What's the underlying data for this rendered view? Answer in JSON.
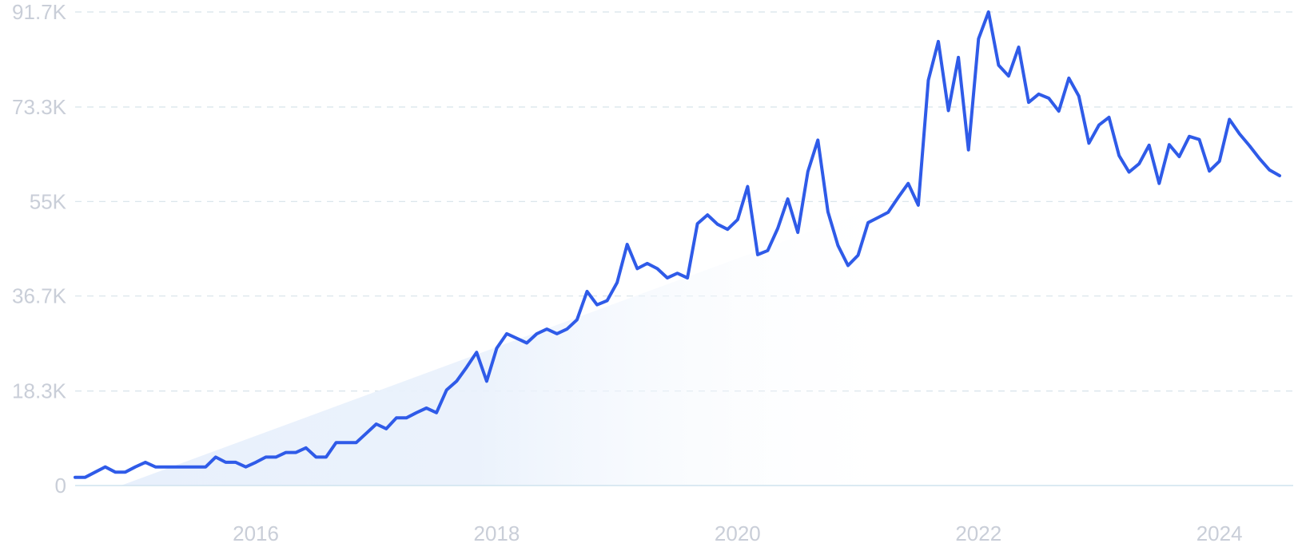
{
  "chart_data": {
    "type": "line",
    "title": "",
    "xlabel": "",
    "ylabel": "",
    "ylim": [
      0,
      91700
    ],
    "xlim": [
      "2014-07",
      "2024-07"
    ],
    "grid": true,
    "y_ticks": [
      {
        "value": 0,
        "label": "0"
      },
      {
        "value": 18300,
        "label": "18.3K"
      },
      {
        "value": 36700,
        "label": "36.7K"
      },
      {
        "value": 55000,
        "label": "55K"
      },
      {
        "value": 73300,
        "label": "73.3K"
      },
      {
        "value": 91700,
        "label": "91.7K"
      }
    ],
    "x_ticks": [
      {
        "date": "2016-01",
        "label": "2016"
      },
      {
        "date": "2018-01",
        "label": "2018"
      },
      {
        "date": "2020-01",
        "label": "2020"
      },
      {
        "date": "2022-01",
        "label": "2022"
      },
      {
        "date": "2024-01",
        "label": "2024"
      }
    ],
    "colors": {
      "line": "#2f5be8",
      "grid": "#d8e3ea",
      "tick_text": "#c9ced8",
      "trend_fill": "#e3edfb"
    },
    "series": [
      {
        "x": [
          "2014-07",
          "2014-08",
          "2014-09",
          "2014-10",
          "2014-11",
          "2014-12",
          "2015-01",
          "2015-02",
          "2015-03",
          "2015-04",
          "2015-05",
          "2015-06",
          "2015-07",
          "2015-08",
          "2015-09",
          "2015-10",
          "2015-11",
          "2015-12",
          "2016-01",
          "2016-02",
          "2016-03",
          "2016-04",
          "2016-05",
          "2016-06",
          "2016-07",
          "2016-08",
          "2016-09",
          "2016-10",
          "2016-11",
          "2016-12",
          "2017-01",
          "2017-02",
          "2017-03",
          "2017-04",
          "2017-05",
          "2017-06",
          "2017-07",
          "2017-08",
          "2017-09",
          "2017-10",
          "2017-11",
          "2017-12",
          "2018-01",
          "2018-02",
          "2018-03",
          "2018-04",
          "2018-05",
          "2018-06",
          "2018-07",
          "2018-08",
          "2018-09",
          "2018-10",
          "2018-11",
          "2018-12",
          "2019-01",
          "2019-02",
          "2019-03",
          "2019-04",
          "2019-05",
          "2019-06",
          "2019-07",
          "2019-08",
          "2019-09",
          "2019-10",
          "2019-11",
          "2019-12",
          "2020-01",
          "2020-02",
          "2020-03",
          "2020-04",
          "2020-05",
          "2020-06",
          "2020-07",
          "2020-08",
          "2020-09",
          "2020-10",
          "2020-11",
          "2020-12",
          "2021-01",
          "2021-02",
          "2021-03",
          "2021-04",
          "2021-05",
          "2021-06",
          "2021-07",
          "2021-08",
          "2021-09",
          "2021-10",
          "2021-11",
          "2021-12",
          "2022-01",
          "2022-02",
          "2022-03",
          "2022-04",
          "2022-05",
          "2022-06",
          "2022-07",
          "2022-08",
          "2022-09",
          "2022-10",
          "2022-11",
          "2022-12",
          "2023-01",
          "2023-02",
          "2023-03",
          "2023-04",
          "2023-05",
          "2023-06",
          "2023-07",
          "2023-08",
          "2023-09",
          "2023-10",
          "2023-11",
          "2023-12",
          "2024-01",
          "2024-02",
          "2024-03",
          "2024-04",
          "2024-05",
          "2024-06",
          "2024-07"
        ],
        "values": [
          1600,
          1600,
          2600,
          3600,
          2600,
          2600,
          3600,
          4500,
          3600,
          3600,
          3600,
          3600,
          3600,
          3600,
          5500,
          4500,
          4500,
          3600,
          4500,
          5500,
          5500,
          6400,
          6400,
          7300,
          5500,
          5500,
          8300,
          8300,
          8300,
          10100,
          11900,
          11000,
          13100,
          13100,
          14100,
          15000,
          14100,
          18500,
          20200,
          22900,
          25800,
          20200,
          26600,
          29400,
          28500,
          27600,
          29400,
          30300,
          29400,
          30300,
          32100,
          37600,
          35000,
          35800,
          39300,
          46700,
          42000,
          43000,
          42000,
          40200,
          41100,
          40200,
          50700,
          52400,
          50600,
          49600,
          51500,
          57900,
          44700,
          45500,
          49800,
          55500,
          49000,
          60800,
          66900,
          53000,
          46500,
          42600,
          44600,
          50900,
          51900,
          52900,
          55800,
          58500,
          54300,
          78500,
          86000,
          72600,
          82900,
          65000,
          86500,
          91700,
          81400,
          79300,
          84900,
          74200,
          75800,
          75000,
          72500,
          78900,
          75400,
          66300,
          69800,
          71300,
          63900,
          60700,
          62300,
          65900,
          58500,
          66000,
          63700,
          67600,
          67000,
          60900,
          62800,
          70900,
          68100,
          65800,
          63300,
          61100,
          60000
        ]
      }
    ]
  }
}
